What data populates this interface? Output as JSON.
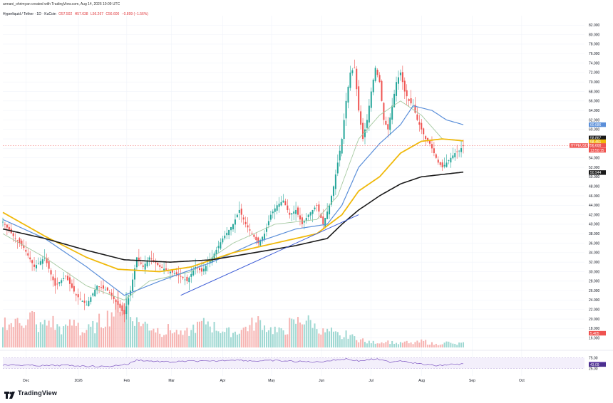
{
  "header": {
    "author_line": "armani_ohrimyan created with TradingView.com, Aug 14, 2026 10:09 UTC",
    "symbol_line": "Hyperliquid / Tether · 1D · KuCoin",
    "ohlc": {
      "open": "O57.502",
      "high": "H57.638",
      "low": "L56.267",
      "close": "C56.600",
      "change": "−0.899 (−1.56%)"
    }
  },
  "logo": {
    "text": "TradingView",
    "icon": "tradingview-logo-icon"
  },
  "colors": {
    "up": "#26a69a",
    "down": "#ef5350",
    "ma_fast": "#a5c9a0",
    "ma_blue": "#5b8fd9",
    "ma_gold": "#f0b90b",
    "ma_black": "#1a1a1a",
    "trend": "#3b5bd6",
    "rsi": "#7e57c2"
  },
  "chart_data": {
    "type": "candlestick",
    "ylim": [
      14,
      84
    ],
    "y_ticks": [
      "82.000",
      "80.000",
      "78.000",
      "76.000",
      "74.000",
      "72.000",
      "70.000",
      "68.000",
      "66.000",
      "64.000",
      "62.000",
      "60.000",
      "58.000",
      "56.000",
      "54.000",
      "52.000",
      "50.000",
      "48.000",
      "46.000",
      "44.000",
      "42.000",
      "40.000",
      "38.000",
      "36.000",
      "34.000",
      "32.000",
      "30.000",
      "28.000",
      "26.000",
      "24.000",
      "22.000",
      "20.000",
      "18.000",
      "16.000"
    ],
    "x_labels": [
      {
        "label": "Dec",
        "pos": 0.04
      },
      {
        "label": "2026",
        "pos": 0.13
      },
      {
        "label": "Feb",
        "pos": 0.213
      },
      {
        "label": "Mar",
        "pos": 0.29
      },
      {
        "label": "Apr",
        "pos": 0.378
      },
      {
        "label": "May",
        "pos": 0.462
      },
      {
        "label": "Jun",
        "pos": 0.548
      },
      {
        "label": "Jul",
        "pos": 0.633
      },
      {
        "label": "Aug",
        "pos": 0.72
      },
      {
        "label": "Sep",
        "pos": 0.807
      },
      {
        "label": "Oct",
        "pos": 0.892
      }
    ],
    "price_tags": [
      {
        "value": 61.0,
        "label": "60.686",
        "color": "#5b8fd9"
      },
      {
        "value": 58.2,
        "label": "58.867",
        "color": "#1a1a1a"
      },
      {
        "value": 57.4,
        "label": "58.451",
        "color": "#f0b90b"
      },
      {
        "value": 56.6,
        "label": "56.600",
        "color": "#ef5350",
        "extra": "HYPEUSDT"
      },
      {
        "value": 55.6,
        "label": "13:50:15",
        "color": "#ef5350"
      },
      {
        "value": 50.9,
        "label": "50.944",
        "color": "#1a1a1a"
      },
      {
        "value": 17.0,
        "label": "5.405",
        "color": "#ef5350"
      }
    ],
    "close_anchors": [
      [
        0,
        40.5
      ],
      [
        5,
        37.5
      ],
      [
        10,
        35
      ],
      [
        15,
        31
      ],
      [
        20,
        33
      ],
      [
        25,
        27
      ],
      [
        30,
        29
      ],
      [
        35,
        25
      ],
      [
        40,
        23
      ],
      [
        45,
        27
      ],
      [
        50,
        26
      ],
      [
        55,
        23
      ],
      [
        58,
        21
      ],
      [
        61,
        26
      ],
      [
        64,
        33
      ],
      [
        67,
        31
      ],
      [
        70,
        33
      ],
      [
        75,
        31
      ],
      [
        80,
        30
      ],
      [
        85,
        29
      ],
      [
        88,
        28
      ],
      [
        92,
        31
      ],
      [
        95,
        30
      ],
      [
        100,
        33
      ],
      [
        105,
        37
      ],
      [
        110,
        40
      ],
      [
        113,
        43
      ],
      [
        116,
        40
      ],
      [
        119,
        38
      ],
      [
        122,
        36
      ],
      [
        125,
        38
      ],
      [
        128,
        42
      ],
      [
        131,
        44
      ],
      [
        134,
        45
      ],
      [
        137,
        42
      ],
      [
        140,
        43
      ],
      [
        143,
        40
      ],
      [
        146,
        42
      ],
      [
        150,
        44
      ],
      [
        153,
        40
      ],
      [
        156,
        44
      ],
      [
        158,
        48
      ],
      [
        160,
        53
      ],
      [
        162,
        58
      ],
      [
        164,
        66
      ],
      [
        166,
        72
      ],
      [
        168,
        73
      ],
      [
        170,
        64
      ],
      [
        172,
        58
      ],
      [
        174,
        62
      ],
      [
        176,
        68
      ],
      [
        178,
        73
      ],
      [
        180,
        70
      ],
      [
        182,
        62
      ],
      [
        184,
        60
      ],
      [
        186,
        65
      ],
      [
        188,
        70
      ],
      [
        190,
        72
      ],
      [
        192,
        68
      ],
      [
        194,
        66
      ],
      [
        196,
        65
      ],
      [
        198,
        62
      ],
      [
        200,
        60
      ],
      [
        202,
        58
      ],
      [
        204,
        57
      ],
      [
        206,
        55
      ],
      [
        208,
        53
      ],
      [
        210,
        52
      ],
      [
        212,
        53
      ],
      [
        214,
        54
      ],
      [
        216,
        55
      ],
      [
        218,
        55.5
      ],
      [
        220,
        56.6
      ]
    ],
    "ma_fast_anchors": [
      [
        0,
        38
      ],
      [
        20,
        33
      ],
      [
        40,
        27
      ],
      [
        58,
        24
      ],
      [
        70,
        28
      ],
      [
        90,
        30
      ],
      [
        110,
        36
      ],
      [
        130,
        40
      ],
      [
        150,
        41
      ],
      [
        160,
        46
      ],
      [
        170,
        58
      ],
      [
        180,
        63
      ],
      [
        190,
        66
      ],
      [
        200,
        63
      ],
      [
        210,
        58
      ],
      [
        220,
        57.5
      ]
    ],
    "ma_blue_anchors": [
      [
        0,
        41
      ],
      [
        20,
        37
      ],
      [
        40,
        31
      ],
      [
        58,
        25
      ],
      [
        75,
        28
      ],
      [
        100,
        32
      ],
      [
        120,
        36
      ],
      [
        140,
        39
      ],
      [
        155,
        40
      ],
      [
        162,
        44
      ],
      [
        170,
        52
      ],
      [
        180,
        57
      ],
      [
        190,
        61
      ],
      [
        196,
        65
      ],
      [
        205,
        64
      ],
      [
        212,
        62
      ],
      [
        220,
        61
      ]
    ],
    "ma_gold_anchors": [
      [
        0,
        42.5
      ],
      [
        20,
        37.5
      ],
      [
        40,
        33
      ],
      [
        55,
        30.5
      ],
      [
        75,
        30
      ],
      [
        90,
        31
      ],
      [
        110,
        34
      ],
      [
        130,
        36
      ],
      [
        150,
        38
      ],
      [
        162,
        42
      ],
      [
        170,
        47
      ],
      [
        180,
        50
      ],
      [
        190,
        55
      ],
      [
        200,
        57.5
      ],
      [
        210,
        58
      ],
      [
        220,
        57.6
      ]
    ],
    "ma_black_anchors": [
      [
        0,
        39
      ],
      [
        20,
        37
      ],
      [
        40,
        34.5
      ],
      [
        58,
        32.5
      ],
      [
        80,
        32
      ],
      [
        100,
        32.5
      ],
      [
        120,
        34
      ],
      [
        140,
        35.5
      ],
      [
        155,
        37
      ],
      [
        162,
        40
      ],
      [
        170,
        43
      ],
      [
        180,
        46
      ],
      [
        190,
        48.5
      ],
      [
        200,
        50
      ],
      [
        210,
        50.5
      ],
      [
        220,
        51
      ]
    ],
    "trendlines": [
      {
        "from": [
          85,
          25
        ],
        "to": [
          170,
          42
        ]
      }
    ],
    "volume_levels": [
      0.5,
      0.45,
      0.55,
      0.5,
      0.6,
      0.4,
      0.45,
      0.5,
      0.4,
      0.35,
      0.45,
      0.5,
      0.3,
      0.35,
      0.4,
      0.5,
      0.6,
      0.7,
      0.95,
      1.0,
      0.6,
      0.5,
      0.45,
      0.4,
      0.35,
      0.3,
      0.35,
      0.3,
      0.25,
      0.3,
      0.4,
      0.45,
      0.5,
      0.4,
      0.35,
      0.3,
      0.3,
      0.35,
      0.4,
      0.45,
      0.5,
      0.4,
      0.35,
      0.3,
      0.35,
      0.45,
      0.5,
      0.55,
      0.5,
      0.4,
      0.3,
      0.3,
      0.25,
      0.2,
      0.25,
      0.2,
      0.15,
      0.1,
      0.1,
      0.1,
      0.12,
      0.1,
      0.08,
      0.1,
      0.08,
      0.1,
      0.12,
      0.08,
      0.06,
      0.08,
      0.1,
      0.06,
      0.08
    ],
    "rsi": {
      "levels": [
        "75.00",
        "45.91",
        "43.09",
        "25.00"
      ],
      "anchors": [
        [
          0,
          42
        ],
        [
          10,
          40
        ],
        [
          20,
          38
        ],
        [
          30,
          40
        ],
        [
          40,
          36
        ],
        [
          50,
          34
        ],
        [
          60,
          46
        ],
        [
          64,
          65
        ],
        [
          70,
          60
        ],
        [
          80,
          55
        ],
        [
          90,
          60
        ],
        [
          100,
          58
        ],
        [
          110,
          66
        ],
        [
          120,
          60
        ],
        [
          130,
          62
        ],
        [
          140,
          58
        ],
        [
          150,
          55
        ],
        [
          160,
          66
        ],
        [
          164,
          70
        ],
        [
          170,
          60
        ],
        [
          178,
          70
        ],
        [
          185,
          55
        ],
        [
          190,
          62
        ],
        [
          200,
          45
        ],
        [
          208,
          38
        ],
        [
          214,
          44
        ],
        [
          220,
          46
        ]
      ]
    }
  }
}
